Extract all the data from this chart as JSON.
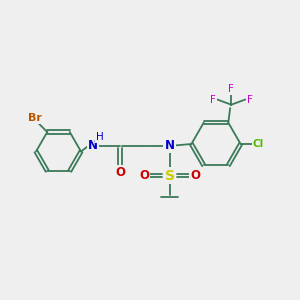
{
  "background_color": "#efefef",
  "bond_color": "#3a7a58",
  "bond_width": 1.3,
  "atom_colors": {
    "Br": "#bb5500",
    "N": "#0000cc",
    "O": "#cc0000",
    "S": "#cccc00",
    "F": "#cc00cc",
    "Cl": "#55bb00",
    "C": "#000000",
    "H": "#0000cc"
  },
  "font_size": 7.5,
  "figure_size": [
    3.0,
    3.0
  ],
  "dpi": 100,
  "xlim": [
    0,
    10
  ],
  "ylim": [
    0,
    10
  ]
}
